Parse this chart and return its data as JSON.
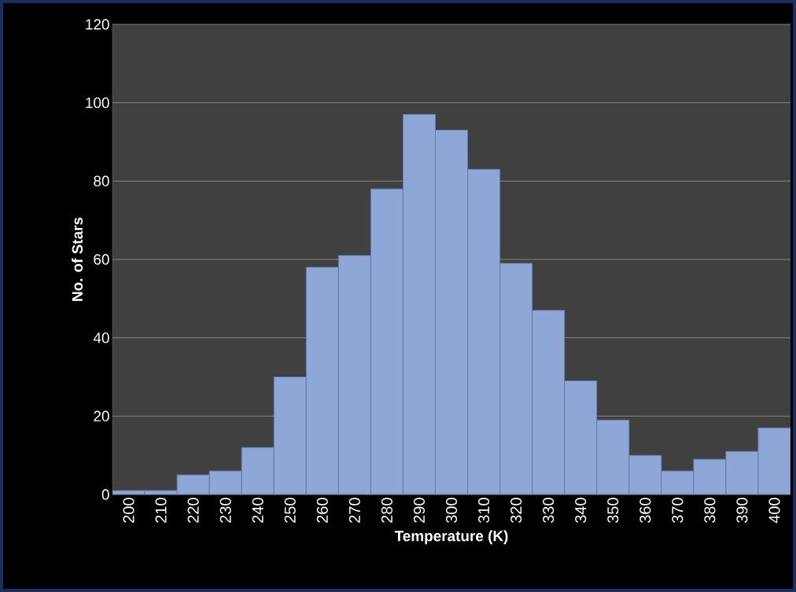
{
  "chart_data": {
    "type": "bar",
    "xlabel": "Temperature (K)",
    "ylabel": "No. of Stars",
    "categories": [
      "200",
      "210",
      "220",
      "230",
      "240",
      "250",
      "260",
      "270",
      "280",
      "290",
      "300",
      "310",
      "320",
      "330",
      "340",
      "350",
      "360",
      "370",
      "380",
      "390",
      "400"
    ],
    "values": [
      1,
      1,
      5,
      6,
      12,
      30,
      58,
      61,
      78,
      97,
      93,
      83,
      59,
      47,
      29,
      19,
      10,
      6,
      9,
      11,
      17
    ],
    "color": "#8ea7d7",
    "ylim": [
      0,
      120
    ],
    "yticks": [
      0,
      20,
      40,
      60,
      80,
      100,
      120
    ],
    "grid": "y"
  }
}
